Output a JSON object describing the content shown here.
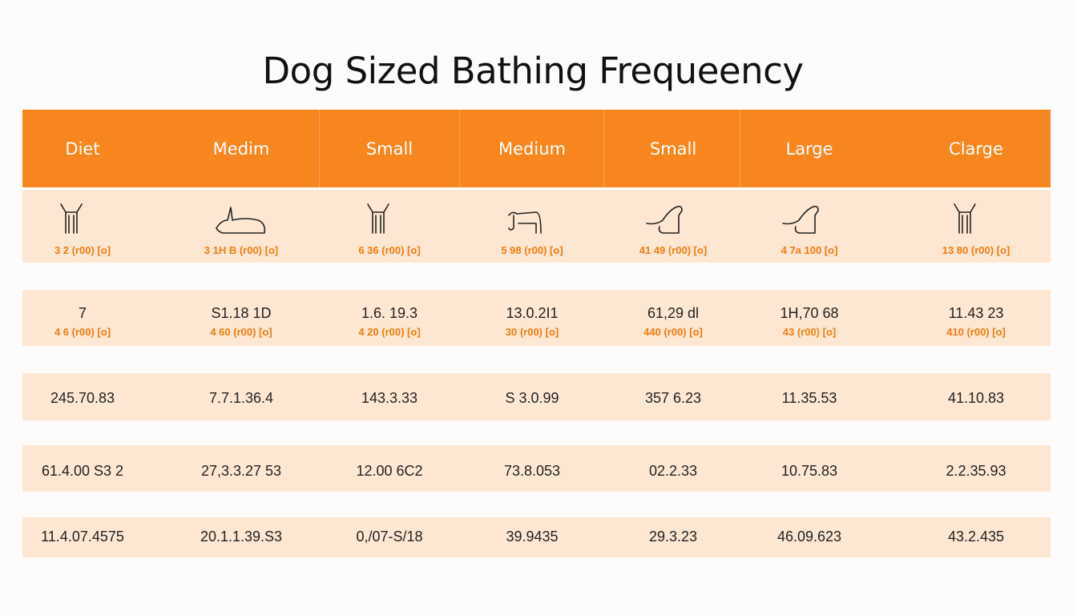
{
  "title": "Dog Sized Bathing Frequeency",
  "colors": {
    "header": "#f7861e",
    "row": "#fde7d3",
    "accent": "#f07c0c"
  },
  "headers": [
    "Diet",
    "Medim",
    "Small",
    "Medium",
    "Small",
    "Large",
    "Clarge"
  ],
  "icon_row": {
    "icons": [
      "dog-standing-icon",
      "dog-lying-icon",
      "dog-standing-icon",
      "dog-walking-icon",
      "dog-sitting-icon",
      "dog-sitting-icon",
      "dog-standing-icon"
    ],
    "subs": [
      "3 2 (r00) [o]",
      "3 1H B (r00) [o]",
      "6 36 (r00) [o]",
      "5 98 (r00) [o]",
      "41 49 (r00) [o]",
      "4 7a 100 [o]",
      "13 80 (r00) [o]"
    ]
  },
  "row2": {
    "values": [
      "7",
      "S1.18 1D",
      "1.6. 19.3",
      "13.0.2I1",
      "61,29 dl",
      "1H,70 68",
      "11.43 23"
    ],
    "subs": [
      "4 6 (r00) [o]",
      "4 60 (r00) [o]",
      "4 20 (r00) [o]",
      "30 (r00) [o]",
      "440 (r00) [o]",
      "43 (r00) [o]",
      "410 (r00) [o]"
    ]
  },
  "rows": [
    [
      "245.70.83",
      "7.7.1.36.4",
      "143.3.33",
      "S 3.0.99",
      "357 6.23",
      "11.35.53",
      "41.10.83"
    ],
    [
      "61.4.00 S3 2",
      "27,3.3.27 53",
      "12.00 6C2",
      "73.8.053",
      "02.2.33",
      "10.75.83",
      "2.2.35.93"
    ],
    [
      "11.4.07.4575",
      "20.1.1.39.S3",
      "0,/07-S/18",
      "39.9435",
      "29.3.23",
      "46.09.623",
      "43.2.435"
    ]
  ]
}
